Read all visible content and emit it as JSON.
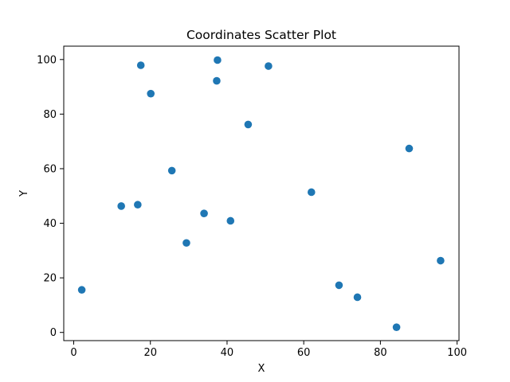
{
  "chart_data": {
    "type": "scatter",
    "title": "Coordinates Scatter Plot",
    "xlabel": "X",
    "ylabel": "Y",
    "xlim": [
      -2.6,
      100.5
    ],
    "ylim": [
      -3.0,
      104.9
    ],
    "xticks": [
      0,
      20,
      40,
      60,
      80,
      100
    ],
    "yticks": [
      0,
      20,
      40,
      60,
      80,
      100
    ],
    "grid": false,
    "marker_color": "#1f77b4",
    "points": [
      {
        "x": 2.1,
        "y": 15.6
      },
      {
        "x": 12.4,
        "y": 46.3
      },
      {
        "x": 16.7,
        "y": 46.8
      },
      {
        "x": 17.5,
        "y": 97.9
      },
      {
        "x": 20.1,
        "y": 87.5
      },
      {
        "x": 25.6,
        "y": 59.3
      },
      {
        "x": 29.4,
        "y": 32.8
      },
      {
        "x": 34.0,
        "y": 43.6
      },
      {
        "x": 37.3,
        "y": 92.2
      },
      {
        "x": 37.5,
        "y": 99.8
      },
      {
        "x": 40.9,
        "y": 40.9
      },
      {
        "x": 45.5,
        "y": 76.2
      },
      {
        "x": 50.8,
        "y": 97.6
      },
      {
        "x": 62.0,
        "y": 51.4
      },
      {
        "x": 69.2,
        "y": 17.3
      },
      {
        "x": 74.0,
        "y": 12.9
      },
      {
        "x": 84.2,
        "y": 1.9
      },
      {
        "x": 87.5,
        "y": 67.4
      },
      {
        "x": 95.7,
        "y": 26.3
      }
    ]
  }
}
